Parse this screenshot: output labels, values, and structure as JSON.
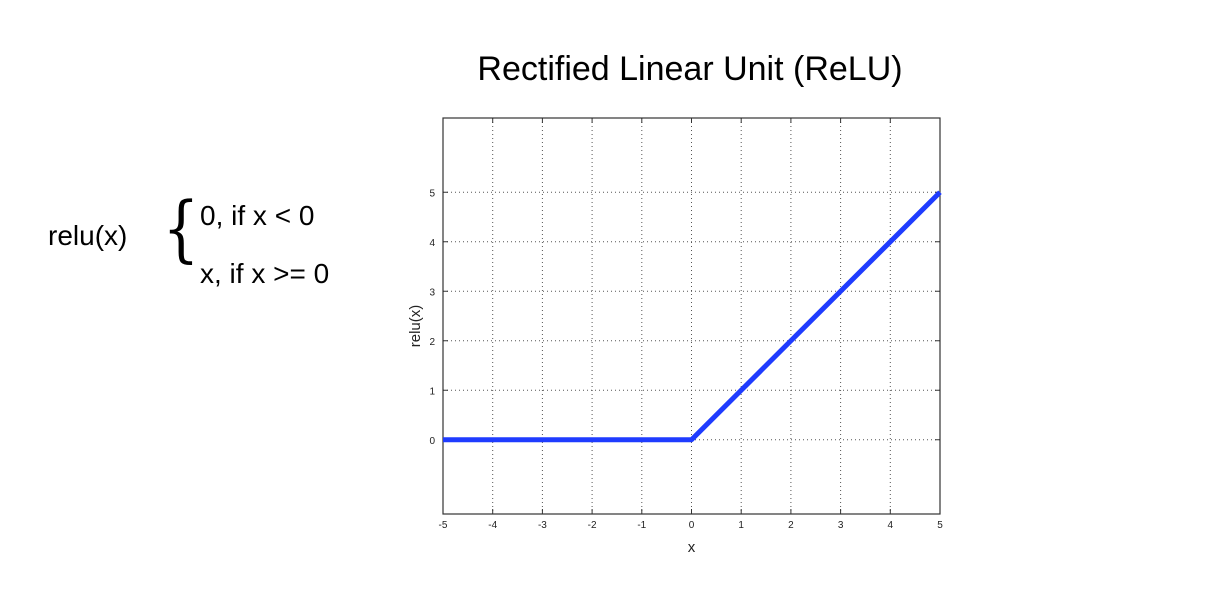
{
  "formula": {
    "name": "relu(x)",
    "cases": [
      "0, if x < 0",
      "x, if x >= 0"
    ]
  },
  "chart_data": {
    "type": "line",
    "title": "Rectified Linear Unit (ReLU)",
    "xlabel": "x",
    "ylabel": "relu(x)",
    "xlim": [
      -5,
      5
    ],
    "ylim": [
      -1.5,
      6.5
    ],
    "xticks": [
      -5,
      -4,
      -3,
      -2,
      -1,
      0,
      1,
      2,
      3,
      4,
      5
    ],
    "yticks": [
      0,
      1,
      2,
      3,
      4,
      5
    ],
    "grid": true,
    "series": [
      {
        "x": [
          -5,
          0,
          5
        ],
        "y": [
          0,
          0,
          5
        ],
        "color": "#1f3cff"
      }
    ]
  }
}
